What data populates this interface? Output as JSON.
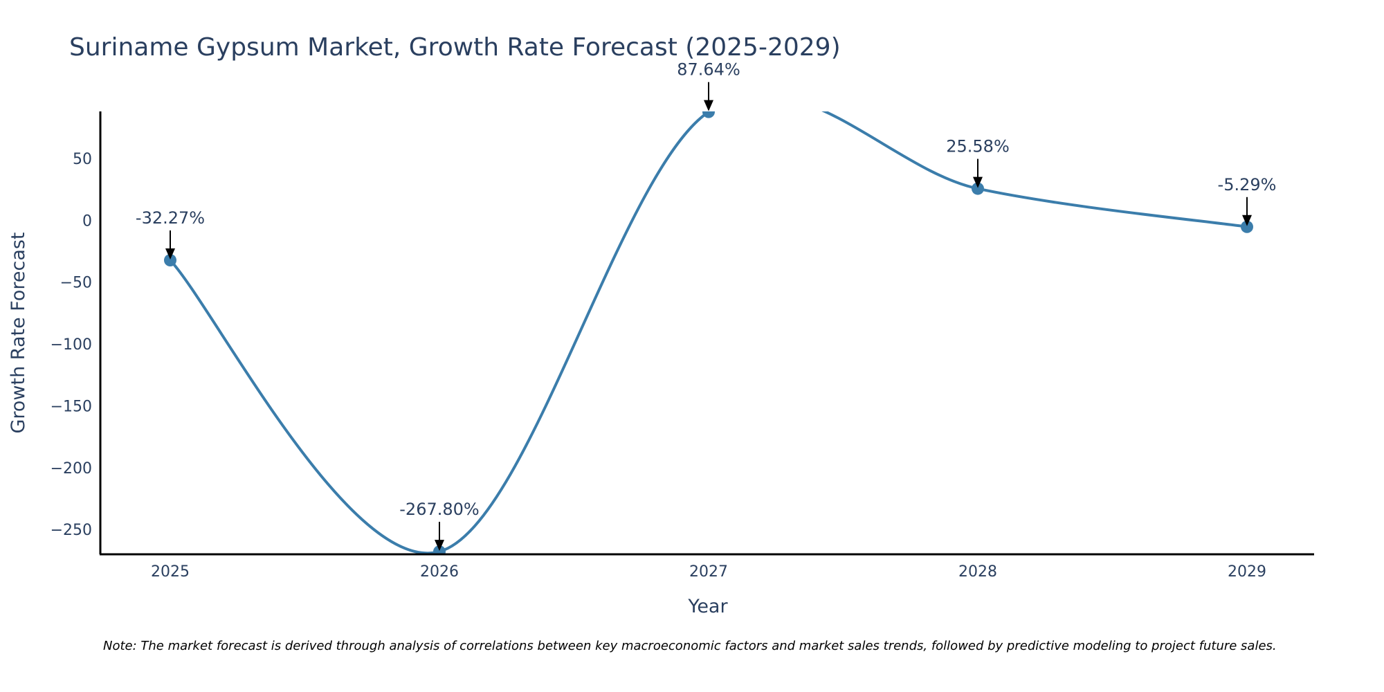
{
  "colors": {
    "line": "#3b7dab",
    "marker": "#3b7dab",
    "text": "#2a3f5f",
    "axis": "#000000",
    "arrow": "#000000"
  },
  "chart_data": {
    "type": "line",
    "title": "Suriname Gypsum Market, Growth Rate Forecast (2025-2029)",
    "xlabel": "Year",
    "ylabel": "Growth Rate Forecast",
    "x": [
      "2025",
      "2026",
      "2027",
      "2028",
      "2029"
    ],
    "series": [
      {
        "name": "Growth Rate Forecast",
        "values": [
          -32.27,
          -267.8,
          87.64,
          25.58,
          -5.29
        ],
        "labels": [
          "-32.27%",
          "-267.80%",
          "87.64%",
          "25.58%",
          "-5.29%"
        ]
      }
    ],
    "yticks": [
      50,
      0,
      -50,
      -100,
      -150,
      -200,
      -250
    ],
    "ytick_labels": [
      "50",
      "0",
      "−50",
      "−100",
      "−150",
      "−200",
      "−250"
    ],
    "ylim": [
      -270,
      88
    ],
    "line_shape": "spline",
    "grid": false
  },
  "note": "Note: The market forecast is derived through analysis of correlations between key macroeconomic factors and market sales trends, followed by predictive modeling to project future sales."
}
